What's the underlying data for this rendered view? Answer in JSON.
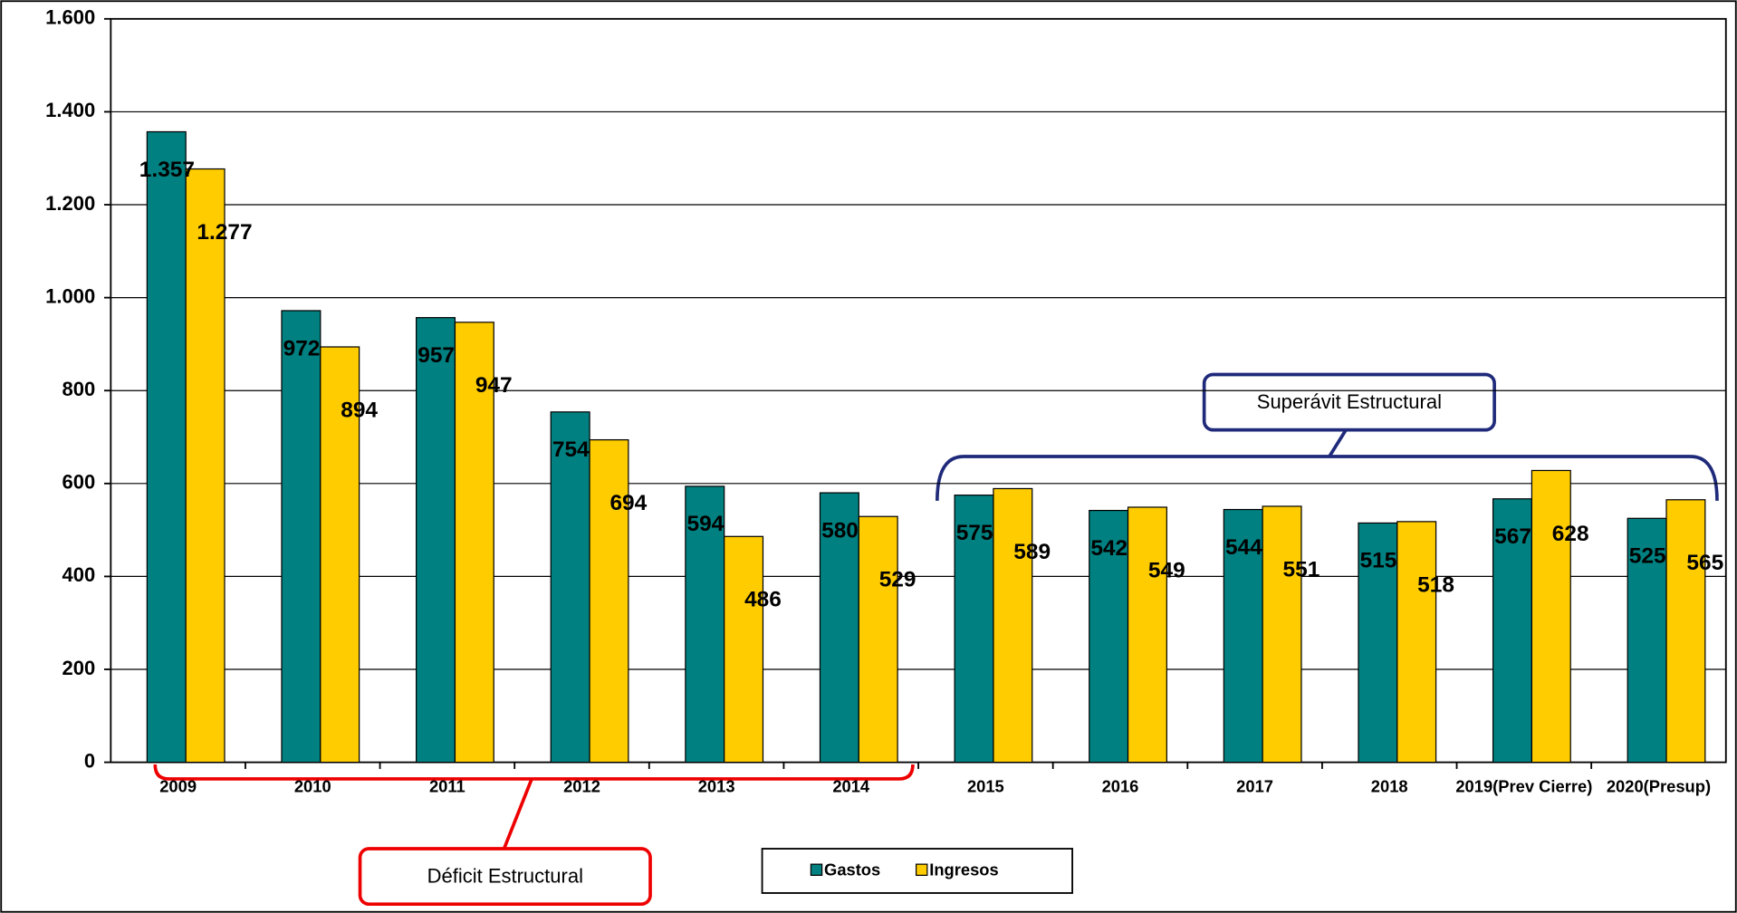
{
  "chart_data": {
    "type": "bar",
    "categories": [
      "2009",
      "2010",
      "2011",
      "2012",
      "2013",
      "2014",
      "2015",
      "2016",
      "2017",
      "2018",
      "2019(Prev Cierre)",
      "2020(Presup)"
    ],
    "series": [
      {
        "name": "Gastos",
        "color": "#008080",
        "values": [
          1357,
          972,
          957,
          754,
          594,
          580,
          575,
          542,
          544,
          515,
          567,
          525
        ],
        "value_labels": [
          "1.357",
          "972",
          "957",
          "754",
          "594",
          "580",
          "575",
          "542",
          "544",
          "515",
          "567",
          "525"
        ]
      },
      {
        "name": "Ingresos",
        "color": "#FFCC00",
        "values": [
          1277,
          894,
          947,
          694,
          486,
          529,
          589,
          549,
          551,
          518,
          628,
          565
        ],
        "value_labels": [
          "1.277",
          "894",
          "947",
          "694",
          "486",
          "529",
          "589",
          "549",
          "551",
          "518",
          "628",
          "565"
        ]
      }
    ],
    "ylim": [
      0,
      1600
    ],
    "yticks": [
      0,
      200,
      400,
      600,
      800,
      {
        "value": 1000,
        "label": "1.000"
      },
      {
        "value": 1200,
        "label": "1.200"
      },
      {
        "value": 1400,
        "label": "1.400"
      },
      {
        "value": 1600,
        "label": "1.600"
      }
    ],
    "grid": true,
    "legend": "bottom",
    "annotations": [
      "Superávit Estructural",
      "Déficit Estructural"
    ]
  }
}
